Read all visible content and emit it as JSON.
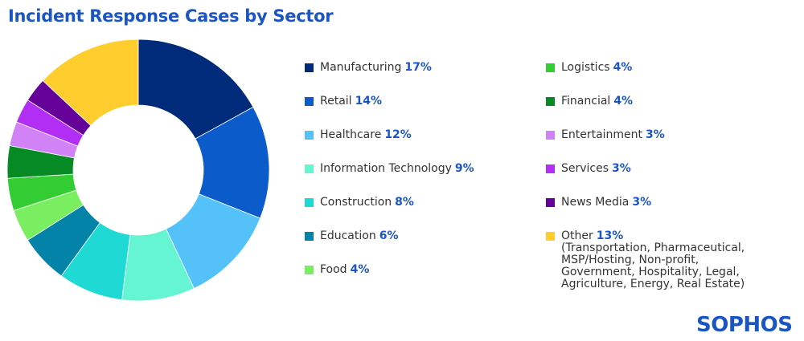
{
  "title": "Incident Response Cases by Sector",
  "logo": "SOPHOS",
  "chart_data": {
    "type": "pie",
    "variant": "donut",
    "title": "Incident Response Cases by Sector",
    "unit": "%",
    "slices": [
      {
        "label": "Manufacturing",
        "value": 17,
        "value_label": "17%",
        "color": "#002a7a"
      },
      {
        "label": "Retail",
        "value": 14,
        "value_label": "14%",
        "color": "#0b5bcb"
      },
      {
        "label": "Healthcare",
        "value": 12,
        "value_label": "12%",
        "color": "#54c2f8"
      },
      {
        "label": "Information Technology",
        "value": 9,
        "value_label": "9%",
        "color": "#66f5d2"
      },
      {
        "label": "Construction",
        "value": 8,
        "value_label": "8%",
        "color": "#1fdad4"
      },
      {
        "label": "Education",
        "value": 6,
        "value_label": "6%",
        "color": "#0383a8"
      },
      {
        "label": "Food",
        "value": 4,
        "value_label": "4%",
        "color": "#79ee61"
      },
      {
        "label": "Logistics",
        "value": 4,
        "value_label": "4%",
        "color": "#33cc33"
      },
      {
        "label": "Financial",
        "value": 4,
        "value_label": "4%",
        "color": "#058a24"
      },
      {
        "label": "Entertainment",
        "value": 3,
        "value_label": "3%",
        "color": "#d282f7"
      },
      {
        "label": "Services",
        "value": 3,
        "value_label": "3%",
        "color": "#b32ef5"
      },
      {
        "label": "News Media",
        "value": 3,
        "value_label": "3%",
        "color": "#650099"
      },
      {
        "label": "Other",
        "value": 13,
        "value_label": "13%",
        "color": "#ffce2e",
        "note": "(Transportation, Pharmaceutical,\nMSP/Hosting, Non-profit,\nGovernment, Hospitality, Legal,\nAgriculture, Energy, Real Estate)"
      }
    ]
  }
}
